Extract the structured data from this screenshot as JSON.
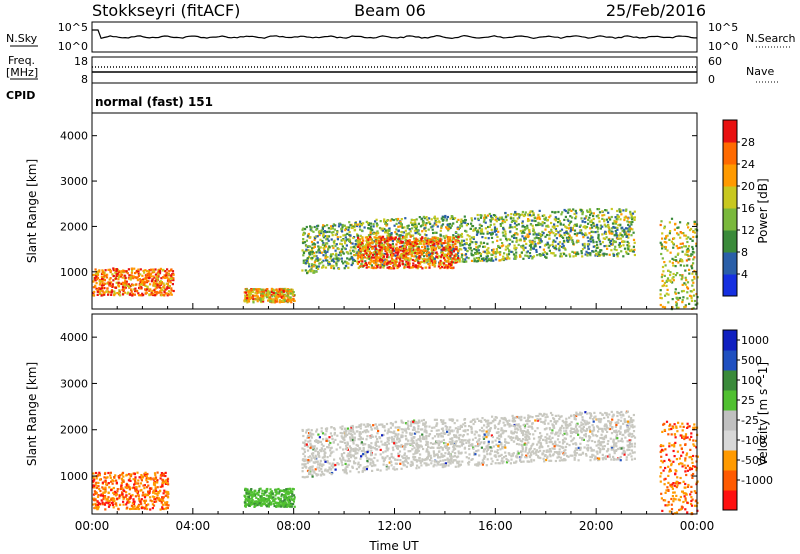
{
  "header": {
    "station": "Stokkseyri (fitACF)",
    "beam": "Beam 06",
    "date": "25/Feb/2016"
  },
  "nsky": {
    "label": "N.Sky",
    "tick_top": "10^5",
    "tick_bottom": "10^0",
    "right_label": "N.Search",
    "right_tick_top": "10^5",
    "right_tick_bottom": "10^0"
  },
  "freq": {
    "label_line1": "Freq.",
    "label_line2": "[MHz]",
    "tick_top": "18",
    "tick_bottom": "8",
    "right_label": "Nave",
    "right_tick_top": "60",
    "right_tick_bottom": "0"
  },
  "cpid": {
    "label": "CPID",
    "value": "normal (fast) 151"
  },
  "colors": {
    "power": [
      "#1630e0",
      "#2a5fa8",
      "#3a8a3a",
      "#7ab83c",
      "#c8c820",
      "#ff9a00",
      "#ff6a00",
      "#e81010"
    ],
    "velocity": [
      "#ff1010",
      "#ff5a00",
      "#ff9a00",
      "#d8d8d8",
      "#c0c0c0",
      "#50c030",
      "#3a8a3a",
      "#2050c0",
      "#1020c0"
    ]
  },
  "chart_data": [
    {
      "type": "heatmap",
      "title": "",
      "xlabel": "",
      "ylabel": "Slant Range [km]",
      "x_ticks": [
        "00:00",
        "04:00",
        "08:00",
        "12:00",
        "16:00",
        "20:00",
        "00:00"
      ],
      "y_ticks": [
        "1000",
        "2000",
        "3000",
        "4000"
      ],
      "ylim": [
        180,
        4500
      ],
      "colorbar_label": "Power [dB]",
      "colorbar_ticks": [
        "4",
        "8",
        "12",
        "16",
        "20",
        "24",
        "28"
      ],
      "zlim": [
        0,
        32
      ],
      "features": [
        {
          "region": "early-evening near range",
          "time_hr": [
            0.0,
            3.2
          ],
          "range_km": [
            500,
            1100
          ],
          "power_db": 26
        },
        {
          "region": "morning near range patch",
          "time_hr": [
            6.0,
            8.0
          ],
          "range_km": [
            350,
            650
          ],
          "power_db": 24
        },
        {
          "region": "main arc",
          "time_hr": [
            8.3,
            21.5
          ],
          "range_km": [
            1000,
            2500
          ],
          "power_db": 16
        },
        {
          "region": "arc core",
          "time_hr": [
            10.5,
            14.5
          ],
          "range_km": [
            1100,
            1800
          ],
          "power_db": 26
        },
        {
          "region": "late near range",
          "time_hr": [
            22.5,
            24.0
          ],
          "range_km": [
            200,
            2200
          ],
          "power_db": 20
        }
      ]
    },
    {
      "type": "heatmap",
      "title": "",
      "xlabel": "Time UT",
      "ylabel": "Slant Range [km]",
      "x_ticks": [
        "00:00",
        "04:00",
        "08:00",
        "12:00",
        "16:00",
        "20:00",
        "00:00"
      ],
      "y_ticks": [
        "1000",
        "2000",
        "3000",
        "4000"
      ],
      "ylim": [
        180,
        4500
      ],
      "colorbar_label": "Velocity [m s^-1]",
      "colorbar_ticks": [
        "1000",
        "500",
        "100",
        "25",
        "-25",
        "-100",
        "-500",
        "-1000"
      ],
      "zlim": [
        -1200,
        1200
      ],
      "features": [
        {
          "region": "early near range",
          "time_hr": [
            0.0,
            3.0
          ],
          "range_km": [
            300,
            1100
          ],
          "velocity": -300
        },
        {
          "region": "morning green patch",
          "time_hr": [
            6.0,
            8.0
          ],
          "range_km": [
            350,
            750
          ],
          "velocity": 150
        },
        {
          "region": "main arc ground scatter",
          "time_hr": [
            8.3,
            21.5
          ],
          "range_km": [
            1000,
            2500
          ],
          "velocity": 0
        },
        {
          "region": "late near range",
          "time_hr": [
            22.5,
            24.0
          ],
          "range_km": [
            200,
            2200
          ],
          "velocity": -500
        }
      ]
    }
  ]
}
